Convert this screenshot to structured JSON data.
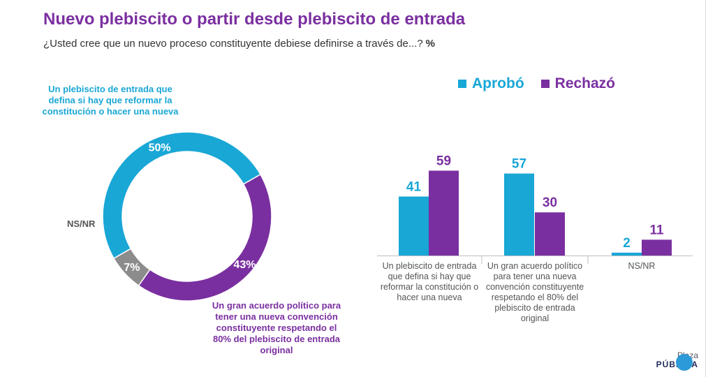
{
  "title": "Nuevo plebiscito o partir desde plebiscito de entrada",
  "subtitle": "¿Usted cree que un nuevo proceso constituyente debiese definirse a través de...?",
  "unit": "%",
  "colors": {
    "aprobo": "#19a7d6",
    "rechazo": "#7a2fa0",
    "nsnr": "#8c8c8c"
  },
  "chart_data": [
    {
      "type": "pie",
      "slices": [
        {
          "label": "Un plebiscito de entrada que defina si hay que reformar la constitución o hacer una nueva",
          "value": 50,
          "value_label": "50%",
          "color": "#19a7d6"
        },
        {
          "label": "Un gran acuerdo político para tener una nueva convención constituyente respetando el 80% del plebiscito de entrada original",
          "value": 43,
          "value_label": "43%",
          "color": "#7a2fa0"
        },
        {
          "label": "NS/NR",
          "value": 7,
          "value_label": "7%",
          "color": "#8c8c8c"
        }
      ]
    },
    {
      "type": "bar",
      "categories": [
        "Un plebiscito de entrada que defina si hay que reformar la constitución o hacer una nueva",
        "Un gran acuerdo político para tener una nueva convención constituyente respetando el 80% del plebiscito de entrada original",
        "NS/NR"
      ],
      "series": [
        {
          "name": "Aprobó",
          "values": [
            41,
            57,
            2
          ],
          "color": "#19a7d6"
        },
        {
          "name": "Rechazó",
          "values": [
            59,
            30,
            11
          ],
          "color": "#7a2fa0"
        }
      ],
      "legend": "top"
    }
  ],
  "logo": {
    "line1": "Plaza",
    "line2": "PÚBLICA"
  }
}
